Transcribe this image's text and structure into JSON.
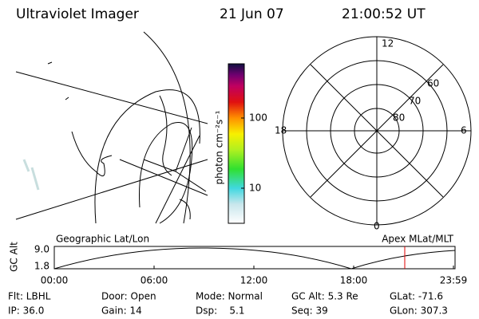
{
  "header": {
    "title": "Ultraviolet Imager",
    "date": "21 Jun 07",
    "time": "21:00:52 UT"
  },
  "colorbar": {
    "label": "photon cm⁻²s⁻¹",
    "ticks": [
      "100",
      "10"
    ]
  },
  "polar": {
    "mlt_labels": [
      "12",
      "18",
      "6",
      "0"
    ],
    "lat_labels": [
      "60",
      "70",
      "80"
    ]
  },
  "altitude_plot": {
    "left_title": "Geographic Lat/Lon",
    "right_title": "Apex MLat/MLT",
    "y_label": "GC Alt",
    "y_ticks": [
      "9.0",
      "1.8"
    ],
    "x_ticks": [
      "00:00",
      "06:00",
      "12:00",
      "18:00",
      "23:59"
    ]
  },
  "footer": {
    "rows": [
      [
        "Flt: LBHL",
        "Door: Open",
        "Mode: Normal",
        "GC Alt: 5.3 Re",
        "GLat: -71.6"
      ],
      [
        "IP: 36.0",
        "Gain: 14",
        "Dsp:    5.1",
        "Seq: 39",
        "GLon: 307.3"
      ]
    ]
  }
}
